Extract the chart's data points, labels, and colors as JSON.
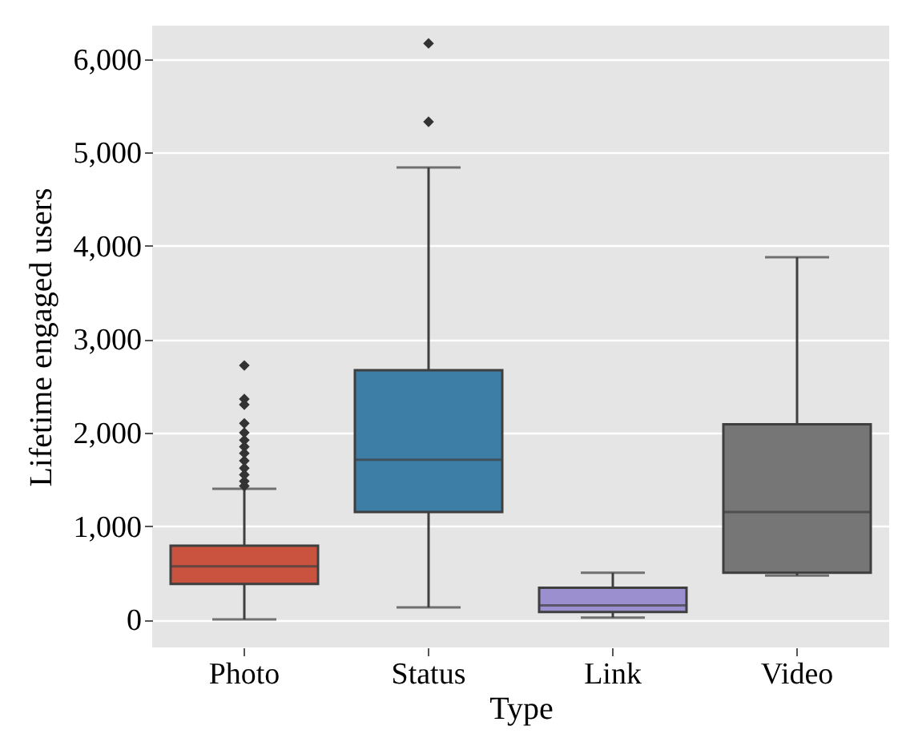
{
  "chart_data": {
    "type": "box",
    "xlabel": "Type",
    "ylabel": "Lifetime engaged users",
    "categories": [
      "Photo",
      "Status",
      "Link",
      "Video"
    ],
    "colors": [
      "#c9533e",
      "#3d7ea6",
      "#9b8fcf",
      "#767676"
    ],
    "boxes": [
      {
        "low": 0,
        "q1": 380,
        "median": 570,
        "q3": 790,
        "high": 1400,
        "outliers": [
          2720,
          2360,
          2300,
          2100,
          2000,
          1920,
          1850,
          1780,
          1700,
          1620,
          1550,
          1480,
          1430
        ]
      },
      {
        "low": 130,
        "q1": 1150,
        "median": 1710,
        "q3": 2670,
        "high": 4840,
        "outliers": [
          5330,
          6170
        ]
      },
      {
        "low": 20,
        "q1": 80,
        "median": 150,
        "q3": 340,
        "high": 500
      },
      {
        "low": 470,
        "q1": 500,
        "median": 1150,
        "q3": 2090,
        "high": 3880
      }
    ],
    "ylim": [
      -300,
      6360
    ],
    "yticks": [
      {
        "value": 0,
        "label": "0"
      },
      {
        "value": 1000,
        "label": "1,000"
      },
      {
        "value": 2000,
        "label": "2,000"
      },
      {
        "value": 3000,
        "label": "3,000"
      },
      {
        "value": 4000,
        "label": "4,000"
      },
      {
        "value": 5000,
        "label": "5,000"
      },
      {
        "value": 6000,
        "label": "6,000"
      }
    ],
    "grid": "y",
    "marker": "diamond"
  }
}
